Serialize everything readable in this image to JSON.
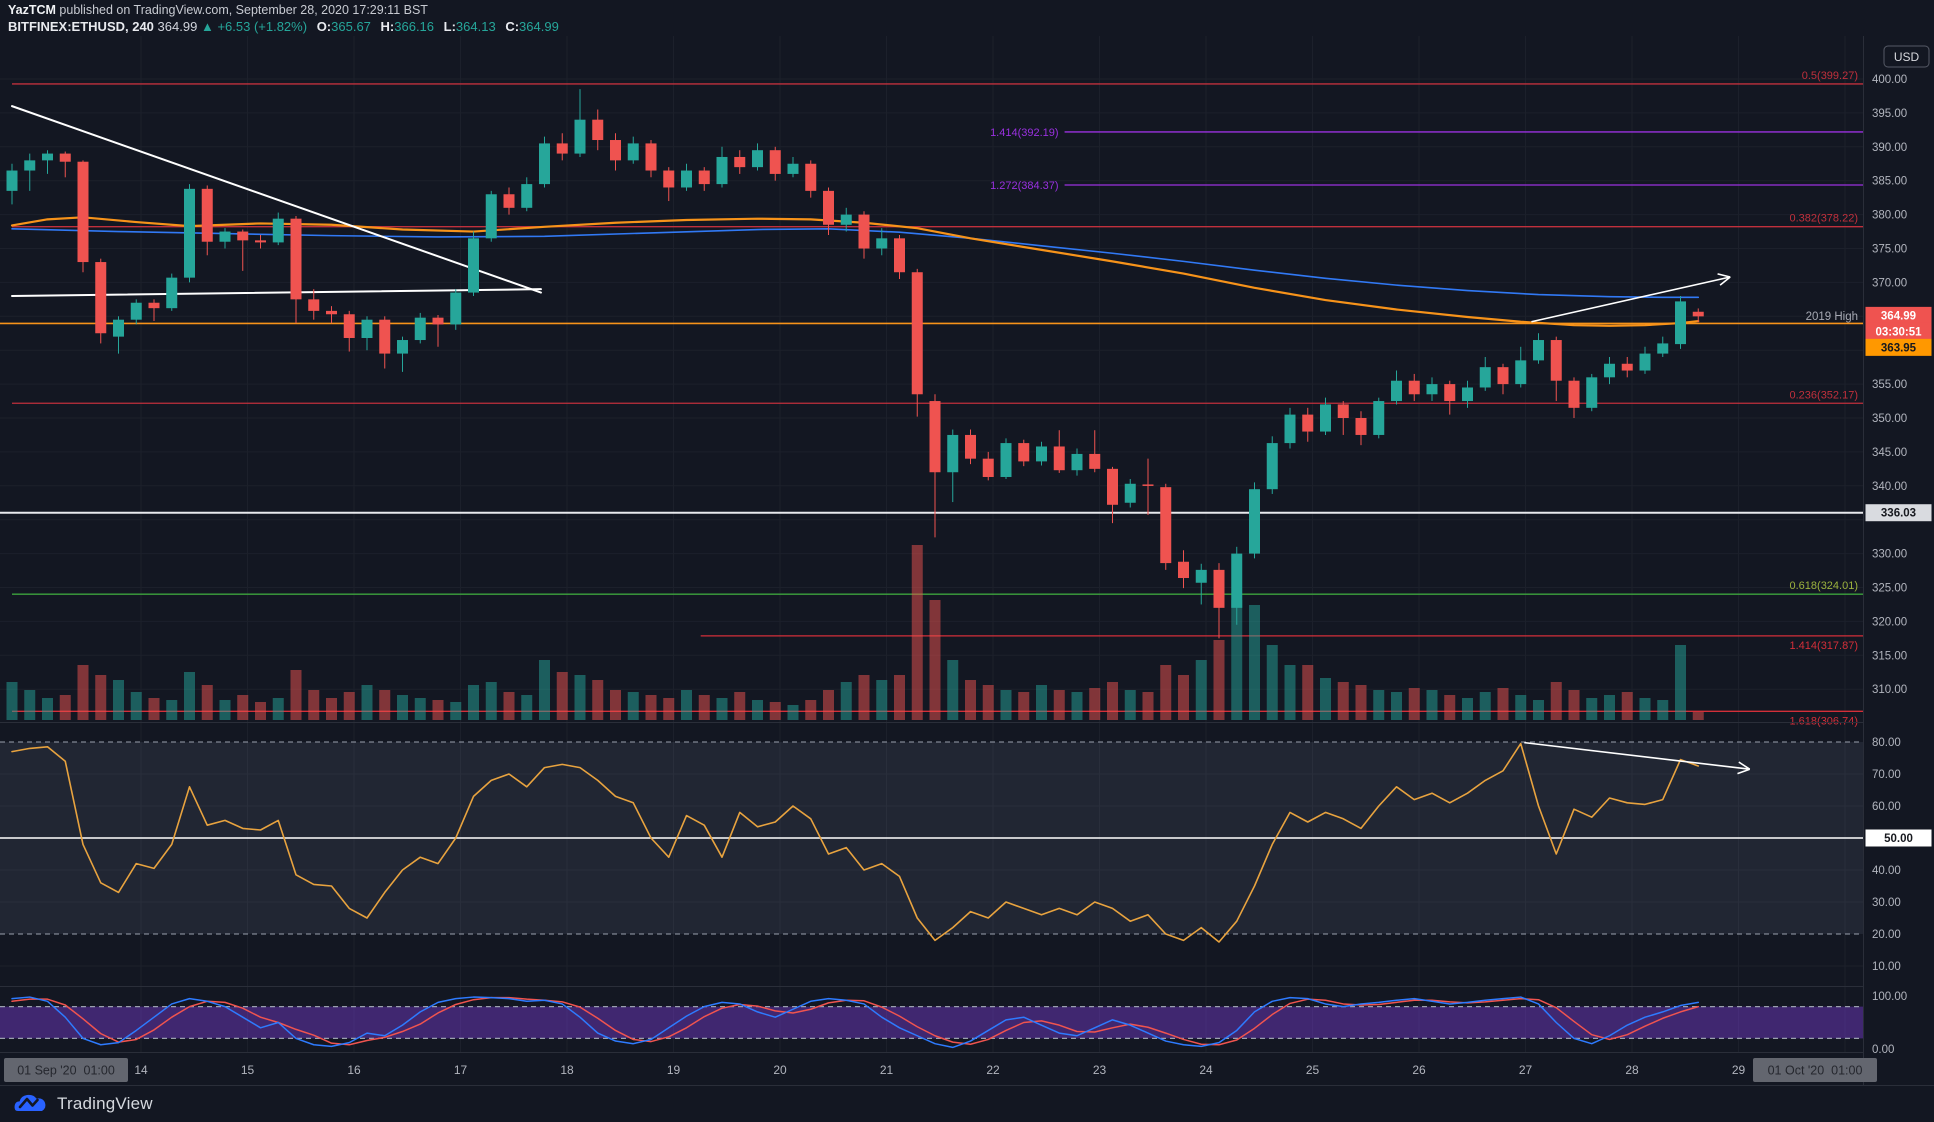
{
  "header": {
    "author": "YazTCM",
    "published": " published on TradingView.com, September 28, 2020 17:29:11 BST",
    "symbol": "BITFINEX:ETHUSD, 240",
    "last_price": "364.99",
    "up_arrow": "▲",
    "change": "+6.53 (+1.82%)",
    "ohlc": [
      {
        "k": "O:",
        "v": "365.67"
      },
      {
        "k": "H:",
        "v": "366.16"
      },
      {
        "k": "L:",
        "v": "364.13"
      },
      {
        "k": "C:",
        "v": "364.99"
      }
    ]
  },
  "footer": {
    "brand": "TradingView"
  },
  "axis": {
    "currency": "USD",
    "price_ticks": [
      400,
      395,
      390,
      385,
      380,
      375,
      370,
      360,
      355,
      350,
      345,
      340,
      330,
      325,
      320,
      315,
      310
    ],
    "rsi_ticks": [
      80,
      70,
      60,
      50,
      40,
      30,
      20,
      10
    ],
    "stoch_ticks": [
      100,
      0
    ],
    "time_labels": [
      "14",
      "15",
      "16",
      "17",
      "18",
      "19",
      "20",
      "21",
      "22",
      "23",
      "24",
      "25",
      "26",
      "27",
      "28",
      "29"
    ],
    "range_start": "01 Sep '20  01:00",
    "range_end": "01 Oct '20  01:00"
  },
  "badges": {
    "level_name": "2019 High",
    "price": "364.99",
    "countdown": "03:30:51",
    "orange_level": "363.95",
    "white_level": "336.03",
    "rsi_mid": "50.00"
  },
  "colors": {
    "bg": "#131722",
    "grid": "#1c202b",
    "axis_text": "#b2b5be",
    "up": "#26a69a",
    "down": "#ef5350",
    "vol_up": "rgba(38,166,154,0.5)",
    "vol_down": "rgba(239,83,80,0.5)",
    "rsi_line": "#e8a33f",
    "stoch_k": "#2e7bff",
    "stoch_d": "#f0544f",
    "ma_orange": "#f7931a",
    "ma_blue": "#3179f5",
    "white": "#ffffff",
    "badge_red": "#ef5350",
    "badge_orange": "#ff9800",
    "badge_white": "#d9dbe0",
    "fib_red": "#c0303c",
    "fib_red_bright": "#d32f39",
    "fib_purple": "#9a31e0",
    "fib_green_line": "#3da33d",
    "fib_green_label": "#9cb23d",
    "rsi_band": "rgba(160,172,204,0.10)",
    "stoch_band": "rgba(126,63,222,0.42)",
    "dashed": "#9aa0ad",
    "separator": "#2a2e39",
    "box_bg": "#63666f",
    "box_text": "#25272e"
  },
  "chart_data": {
    "type": "candlestick",
    "symbol": "BITFINEX:ETHUSD",
    "interval": "240",
    "ylim": [
      306,
      406
    ],
    "bars": [
      [
        383.5,
        387.5,
        381.5,
        386.5
      ],
      [
        386.5,
        389,
        383.5,
        388
      ],
      [
        388,
        389.5,
        386,
        389
      ],
      [
        389,
        389.3,
        385.5,
        387.8
      ],
      [
        387.8,
        388,
        371.5,
        373
      ],
      [
        373,
        373.5,
        361,
        362.5
      ],
      [
        362,
        365,
        359.5,
        364.5
      ],
      [
        364.5,
        367.5,
        363.8,
        367
      ],
      [
        367,
        367.5,
        364.3,
        366.2
      ],
      [
        366.2,
        371.3,
        365.8,
        370.7
      ],
      [
        370.7,
        384.5,
        370,
        383.8
      ],
      [
        383.8,
        384.3,
        374,
        376
      ],
      [
        376,
        378,
        375,
        377.5
      ],
      [
        377.5,
        377.8,
        371.7,
        376.2
      ],
      [
        376.2,
        377,
        375,
        375.9
      ],
      [
        375.9,
        380.3,
        375.5,
        379.4
      ],
      [
        379.4,
        379.8,
        364,
        367.5
      ],
      [
        367.5,
        369,
        364.5,
        365.8
      ],
      [
        365.8,
        366.5,
        364,
        365.3
      ],
      [
        365.3,
        365.8,
        359.8,
        361.8
      ],
      [
        361.8,
        365,
        360,
        364.5
      ],
      [
        364.5,
        365,
        357.3,
        359.5
      ],
      [
        359.5,
        362,
        356.8,
        361.5
      ],
      [
        361.5,
        365.5,
        361,
        364.8
      ],
      [
        364.8,
        365.2,
        360.5,
        363.8
      ],
      [
        363.8,
        369,
        363,
        368.5
      ],
      [
        368.5,
        377.5,
        368,
        376.5
      ],
      [
        376.5,
        383.5,
        376,
        383
      ],
      [
        383,
        384,
        380,
        381
      ],
      [
        381,
        385.5,
        380.5,
        384.5
      ],
      [
        384.5,
        391.5,
        384,
        390.5
      ],
      [
        390.5,
        392,
        388,
        389
      ],
      [
        389,
        398.5,
        388.5,
        394
      ],
      [
        394,
        395.5,
        389.5,
        391
      ],
      [
        391,
        392,
        386.5,
        388
      ],
      [
        388,
        391.5,
        387.5,
        390.5
      ],
      [
        390.5,
        391,
        385.5,
        386.5
      ],
      [
        386.5,
        387,
        382,
        384
      ],
      [
        384,
        387.5,
        383.5,
        386.5
      ],
      [
        386.5,
        387,
        383.5,
        384.5
      ],
      [
        384.5,
        390,
        384,
        388.5
      ],
      [
        388.5,
        389.5,
        386,
        387
      ],
      [
        387,
        390.5,
        386.5,
        389.5
      ],
      [
        389.5,
        390,
        385,
        386
      ],
      [
        386,
        388.5,
        385.5,
        387.5
      ],
      [
        387.5,
        388,
        382.5,
        383.5
      ],
      [
        383.5,
        384,
        377,
        378.5
      ],
      [
        378.5,
        381,
        377.5,
        380
      ],
      [
        380,
        380.5,
        373.5,
        375
      ],
      [
        375,
        378,
        374,
        376.5
      ],
      [
        376.5,
        377,
        370.5,
        371.5
      ],
      [
        371.5,
        372,
        350.2,
        353.5
      ],
      [
        352.5,
        353.5,
        332.4,
        342
      ],
      [
        342,
        348.3,
        337.6,
        347.5
      ],
      [
        347.5,
        348.3,
        343.2,
        344
      ],
      [
        344,
        345,
        340.8,
        341.3
      ],
      [
        341.3,
        347,
        341,
        346.3
      ],
      [
        346.3,
        346.8,
        342.9,
        343.6
      ],
      [
        343.6,
        346.5,
        343,
        345.8
      ],
      [
        345.8,
        348.2,
        341.9,
        342.3
      ],
      [
        342.3,
        345.5,
        341.5,
        344.7
      ],
      [
        344.7,
        348.2,
        342,
        342.5
      ],
      [
        342.5,
        342.8,
        334.5,
        337.2
      ],
      [
        337.5,
        341,
        336.8,
        340.3
      ],
      [
        340.2,
        344,
        335.7,
        340
      ],
      [
        339.8,
        340.3,
        327.6,
        328.6
      ],
      [
        328.8,
        330.5,
        324.9,
        326.4
      ],
      [
        325.7,
        328.5,
        322.5,
        327.6
      ],
      [
        327.6,
        328.6,
        317.5,
        322
      ],
      [
        322,
        331,
        319.5,
        330
      ],
      [
        330,
        340.5,
        329.3,
        339.5
      ],
      [
        339.5,
        347.3,
        338.8,
        346.3
      ],
      [
        346.3,
        351.5,
        345.5,
        350.5
      ],
      [
        350.5,
        351.5,
        346.5,
        348
      ],
      [
        348,
        353,
        347.5,
        352
      ],
      [
        352,
        352.5,
        347.5,
        350
      ],
      [
        350,
        351,
        346,
        347.5
      ],
      [
        347.5,
        353,
        347,
        352.5
      ],
      [
        352.5,
        357,
        352,
        355.5
      ],
      [
        355.5,
        356.5,
        352.5,
        353.5
      ],
      [
        353.5,
        356,
        352.5,
        355
      ],
      [
        355,
        355.5,
        350.5,
        352.5
      ],
      [
        352.5,
        355.5,
        351.5,
        354.5
      ],
      [
        354.5,
        359,
        354,
        357.5
      ],
      [
        357.5,
        358,
        353.5,
        355
      ],
      [
        355,
        360.5,
        354.5,
        358.5
      ],
      [
        358.5,
        362.5,
        358,
        361.5
      ],
      [
        361.5,
        362,
        352.5,
        355.5
      ],
      [
        355.5,
        356,
        350,
        351.5
      ],
      [
        351.5,
        356.5,
        351,
        356
      ],
      [
        356,
        359,
        355,
        358
      ],
      [
        358,
        359,
        356,
        357
      ],
      [
        357,
        360.5,
        356.5,
        359.5
      ],
      [
        359.5,
        362,
        359,
        361
      ],
      [
        360.9,
        368,
        360.2,
        367.2
      ],
      [
        365.67,
        366.16,
        364.13,
        364.99
      ]
    ],
    "volume": [
      38,
      30,
      22,
      25,
      55,
      45,
      40,
      28,
      22,
      20,
      48,
      35,
      20,
      25,
      18,
      22,
      50,
      30,
      22,
      28,
      35,
      30,
      25,
      22,
      20,
      18,
      35,
      38,
      28,
      25,
      60,
      48,
      45,
      40,
      30,
      28,
      25,
      22,
      30,
      25,
      22,
      28,
      20,
      18,
      15,
      20,
      30,
      38,
      45,
      40,
      45,
      175,
      120,
      60,
      40,
      35,
      30,
      28,
      35,
      30,
      28,
      32,
      38,
      30,
      28,
      55,
      45,
      60,
      80,
      120,
      115,
      75,
      55,
      55,
      42,
      38,
      35,
      30,
      28,
      32,
      30,
      25,
      22,
      28,
      32,
      25,
      20,
      38,
      30,
      22,
      25,
      28,
      22,
      20,
      75,
      8
    ],
    "rsi": [
      77,
      78,
      78.5,
      74,
      48,
      36,
      33,
      42,
      40.5,
      48,
      66,
      54,
      55.5,
      53,
      52.5,
      55.5,
      38.5,
      35.5,
      35,
      28,
      25,
      33,
      40,
      44,
      42,
      50,
      63,
      68,
      70,
      66,
      72,
      73,
      72,
      68,
      63,
      61,
      50,
      44,
      57,
      54,
      44,
      58,
      53.5,
      55,
      60,
      56,
      45,
      47,
      40,
      42,
      38,
      25,
      18,
      22,
      27,
      25,
      30,
      28,
      26,
      28,
      26,
      30,
      28,
      24,
      26,
      20,
      18,
      22,
      17.5,
      24,
      35,
      48,
      58,
      55,
      58,
      56,
      53,
      60,
      66,
      62,
      64,
      61,
      64,
      68,
      71,
      79.5,
      60,
      45,
      59,
      56.5,
      62.5,
      61,
      60.5,
      62,
      74.5,
      72.5
    ],
    "stoch_k": [
      95,
      98,
      90,
      60,
      20,
      8,
      12,
      35,
      60,
      85,
      95,
      90,
      80,
      60,
      40,
      50,
      20,
      8,
      5,
      12,
      30,
      25,
      45,
      70,
      88,
      95,
      98,
      97,
      95,
      90,
      92,
      85,
      60,
      30,
      15,
      10,
      18,
      40,
      62,
      80,
      88,
      85,
      70,
      60,
      75,
      90,
      95,
      92,
      85,
      60,
      40,
      25,
      10,
      3,
      15,
      35,
      55,
      60,
      45,
      30,
      25,
      40,
      55,
      45,
      30,
      15,
      8,
      5,
      12,
      35,
      70,
      90,
      97,
      95,
      85,
      80,
      85,
      88,
      92,
      95,
      90,
      85,
      88,
      92,
      95,
      98,
      85,
      50,
      20,
      10,
      25,
      45,
      60,
      70,
      82,
      88
    ],
    "stoch_d": [
      90,
      94,
      94,
      83,
      57,
      29,
      13,
      18,
      36,
      60,
      80,
      90,
      88,
      77,
      60,
      50,
      37,
      26,
      11,
      8,
      16,
      22,
      33,
      47,
      68,
      84,
      93,
      97,
      97,
      94,
      92,
      89,
      79,
      58,
      35,
      18,
      14,
      23,
      40,
      61,
      77,
      84,
      81,
      72,
      68,
      75,
      87,
      92,
      91,
      79,
      62,
      42,
      25,
      13,
      9,
      18,
      35,
      50,
      53,
      45,
      33,
      32,
      40,
      47,
      41,
      30,
      18,
      9,
      8,
      17,
      39,
      65,
      86,
      94,
      92,
      85,
      83,
      84,
      88,
      92,
      92,
      89,
      87,
      89,
      92,
      95,
      93,
      78,
      52,
      27,
      18,
      27,
      43,
      58,
      70,
      80
    ],
    "ma_orange": [
      [
        0,
        378.4
      ],
      [
        2,
        379.3
      ],
      [
        4,
        379.6
      ],
      [
        7,
        378.9
      ],
      [
        10,
        378.3
      ],
      [
        14,
        378.7
      ],
      [
        18,
        378.5
      ],
      [
        22,
        377.8
      ],
      [
        26,
        377.5
      ],
      [
        30,
        378.2
      ],
      [
        34,
        378.8
      ],
      [
        38,
        379.2
      ],
      [
        42,
        379.4
      ],
      [
        45,
        379.3
      ],
      [
        48,
        378.8
      ],
      [
        51,
        378.0
      ],
      [
        54,
        376.5
      ],
      [
        58,
        374.8
      ],
      [
        62,
        373.1
      ],
      [
        66,
        371.3
      ],
      [
        70,
        369.2
      ],
      [
        74,
        367.4
      ],
      [
        78,
        366.0
      ],
      [
        82,
        364.9
      ],
      [
        85,
        364.2
      ],
      [
        88,
        363.7
      ],
      [
        90,
        363.6
      ],
      [
        92,
        363.7
      ],
      [
        94,
        364.0
      ],
      [
        95,
        364.3
      ]
    ],
    "ma_blue": [
      [
        0,
        377.9
      ],
      [
        6,
        377.5
      ],
      [
        12,
        377.2
      ],
      [
        18,
        376.9
      ],
      [
        24,
        376.7
      ],
      [
        30,
        376.8
      ],
      [
        36,
        377.3
      ],
      [
        42,
        377.8
      ],
      [
        46,
        377.9
      ],
      [
        50,
        377.4
      ],
      [
        54,
        376.5
      ],
      [
        58,
        375.4
      ],
      [
        62,
        374.3
      ],
      [
        66,
        373.1
      ],
      [
        70,
        371.8
      ],
      [
        74,
        370.6
      ],
      [
        78,
        369.6
      ],
      [
        82,
        368.8
      ],
      [
        86,
        368.2
      ],
      [
        90,
        367.9
      ],
      [
        93,
        367.8
      ],
      [
        95,
        367.8
      ]
    ],
    "levels": [
      {
        "price": 399.27,
        "label": "0.5(399.27)",
        "color": "#c0303c",
        "from": 0,
        "side": "above"
      },
      {
        "price": 392.19,
        "label": "1.414(392.19)",
        "color": "#9a31e0",
        "from": 59.3,
        "side": "left"
      },
      {
        "price": 384.37,
        "label": "1.272(384.37)",
        "color": "#9a31e0",
        "from": 59.3,
        "side": "left"
      },
      {
        "price": 378.22,
        "label": "0.382(378.22)",
        "color": "#c0303c",
        "from": 0,
        "side": "above"
      },
      {
        "price": 352.17,
        "label": "0.236(352.17)",
        "color": "#c0303c",
        "from": 0,
        "side": "above"
      },
      {
        "price": 324.01,
        "label": "0.618(324.01)",
        "color": "#9cb23d",
        "line_color": "#3da33d",
        "from": 0,
        "side": "above"
      },
      {
        "price": 317.87,
        "label": "1.414(317.87)",
        "color": "#d32f39",
        "from": 38.8,
        "side": "below"
      },
      {
        "price": 306.74,
        "label": "1.618(306.74)",
        "color": "#d32f39",
        "from": 0,
        "side": "below"
      }
    ],
    "horizontal_ray": {
      "price": 363.95,
      "label": "2019 High"
    },
    "white_level": 336.03,
    "rsi_mid_level": 50,
    "rsi_band": [
      20,
      80
    ],
    "stoch_band": [
      20,
      80
    ],
    "drawings": {
      "trendline": [
        [
          0,
          396.0
        ],
        [
          29.8,
          368.5
        ]
      ],
      "support": [
        [
          0,
          368.0
        ],
        [
          29.8,
          369.0
        ]
      ],
      "arrow_main": [
        [
          85.6,
          364.2
        ],
        [
          96.8,
          370.8
        ]
      ],
      "arrow_rsi": [
        [
          85.2,
          79.8
        ],
        [
          97.9,
          71.5
        ]
      ]
    }
  }
}
